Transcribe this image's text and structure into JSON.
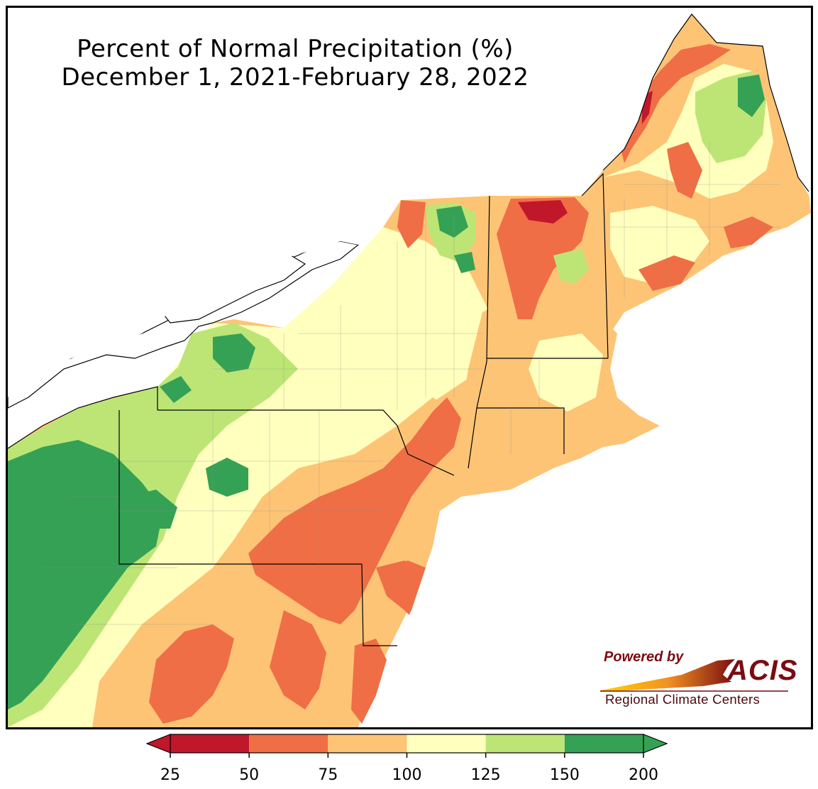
{
  "title": {
    "line1": "Percent of Normal Precipitation (%)",
    "line2": "December 1, 2021-February 28, 2022"
  },
  "logo": {
    "powered_by": "Powered by",
    "acis": "ACIS",
    "regional": "Regional Climate Centers"
  },
  "legend": {
    "ticks": [
      "25",
      "50",
      "75",
      "100",
      "125",
      "150",
      "200"
    ],
    "colors": [
      "#c1172b",
      "#ef6e45",
      "#fdc476",
      "#ffffbe",
      "#bce576",
      "#35a155"
    ],
    "under_color": "#c1172b",
    "over_color": "#35a155"
  },
  "map": {
    "region": "Northeast US",
    "dominant_colors": {
      "red": "#c1172b",
      "orange_red": "#ef6e45",
      "light_orange": "#fdc476",
      "pale_yellow": "#ffffbe",
      "light_green": "#bce576",
      "green": "#35a155"
    }
  }
}
